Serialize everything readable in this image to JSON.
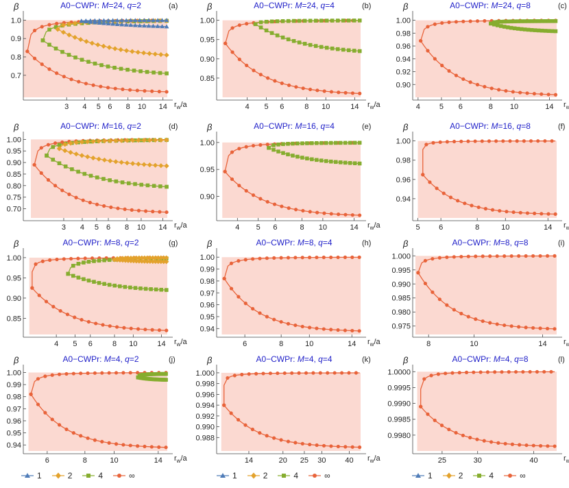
{
  "colors": {
    "1": "#4f7cb8",
    "2": "#e3a22c",
    "4": "#86ad2f",
    "inf": "#e8633a",
    "title": "#1e1ec8",
    "shade": "#fbd9d1"
  },
  "legend": {
    "entries": [
      {
        "key": "1",
        "label": "1",
        "marker": "triangle"
      },
      {
        "key": "2",
        "label": "2",
        "marker": "diamond"
      },
      {
        "key": "4",
        "label": "4",
        "marker": "square"
      },
      {
        "key": "inf",
        "label": "∞",
        "marker": "circle"
      }
    ]
  },
  "chart_data": [
    {
      "type": "line",
      "panel": "(a)",
      "title_prefix": "A0−CWPr: ",
      "M": "24",
      "q": "2",
      "title": "A0−CWPr: M=24, q=2",
      "ylabel": "β",
      "xlabel": "r_w/a",
      "xlim": [
        1.5,
        15
      ],
      "ylim": [
        0.58,
        1.02
      ],
      "xticks": [
        "3",
        "4",
        "5",
        "6",
        "8",
        "10",
        "14"
      ],
      "xtick_values": [
        3,
        4,
        5,
        6,
        8,
        10,
        14
      ],
      "yticks": [
        "0.7",
        "0.8",
        "0.9",
        "1.0"
      ],
      "ytick_values": [
        0.7,
        0.8,
        0.9,
        1.0
      ],
      "shade_from": 1.5,
      "log_x": true,
      "series": [
        {
          "name": "inf",
          "x0": 1.6,
          "upper": [
            0.83,
            1.0
          ],
          "lower": [
            0.83,
            0.61
          ],
          "k": 1.6
        },
        {
          "name": "4",
          "x0": 2.05,
          "upper": [
            0.89,
            1.0
          ],
          "lower": [
            0.89,
            0.71
          ],
          "k": 1.1
        },
        {
          "name": "2",
          "x0": 2.6,
          "upper": [
            0.95,
            1.0
          ],
          "lower": [
            0.95,
            0.81
          ],
          "k": 0.9
        },
        {
          "name": "1",
          "x0": 3.8,
          "upper": [
            0.995,
            1.0
          ],
          "lower": [
            0.995,
            0.965
          ],
          "k": 0.6
        }
      ]
    },
    {
      "type": "line",
      "panel": "(b)",
      "title_prefix": "A0−CWPr: ",
      "M": "24",
      "q": "4",
      "title": "A0−CWPr: M=24, q=4",
      "ylabel": "β",
      "xlabel": "r_w/a",
      "xlim": [
        2.8,
        15
      ],
      "ylim": [
        0.8,
        1.01
      ],
      "xticks": [
        "4",
        "5",
        "6",
        "8",
        "10",
        "14"
      ],
      "xtick_values": [
        4,
        5,
        6,
        8,
        10,
        14
      ],
      "yticks": [
        "0.85",
        "0.90",
        "0.95",
        "1.00"
      ],
      "ytick_values": [
        0.85,
        0.9,
        0.95,
        1.0
      ],
      "shade_from": 3.0,
      "log_x": true,
      "series": [
        {
          "name": "inf",
          "x0": 3.1,
          "upper": [
            0.94,
            1.0
          ],
          "lower": [
            0.94,
            0.81
          ],
          "k": 1.6
        },
        {
          "name": "4",
          "x0": 4.4,
          "upper": [
            0.99,
            1.0
          ],
          "lower": [
            0.99,
            0.92
          ],
          "k": 1.0
        }
      ]
    },
    {
      "type": "line",
      "panel": "(c)",
      "title_prefix": "A0−CWPr: ",
      "M": "24",
      "q": "8",
      "title": "A0−CWPr: M=24, q=8",
      "ylabel": "β",
      "xlabel": "r_w/a",
      "xlim": [
        3.8,
        15
      ],
      "ylim": [
        0.88,
        1.006
      ],
      "xticks": [
        "4",
        "5",
        "6",
        "8",
        "10",
        "14"
      ],
      "xtick_values": [
        4,
        5,
        6,
        8,
        10,
        14
      ],
      "yticks": [
        "0.90",
        "0.92",
        "0.94",
        "0.96",
        "0.98",
        "1.00"
      ],
      "ytick_values": [
        0.9,
        0.92,
        0.94,
        0.96,
        0.98,
        1.0
      ],
      "shade_from": 3.9,
      "log_x": true,
      "series": [
        {
          "name": "inf",
          "x0": 4.1,
          "upper": [
            0.968,
            1.0
          ],
          "lower": [
            0.968,
            0.884
          ],
          "k": 1.7
        },
        {
          "name": "4",
          "x0": 8.0,
          "upper": [
            0.995,
            0.999
          ],
          "lower": [
            0.995,
            0.983
          ],
          "k": 1.0
        }
      ]
    },
    {
      "type": "line",
      "panel": "(d)",
      "title_prefix": "A0−CWPr: ",
      "M": "16",
      "q": "2",
      "title": "A0−CWPr: M=16, q=2",
      "ylabel": "β",
      "xlabel": "r_w/a",
      "xlim": [
        1.6,
        15
      ],
      "ylim": [
        0.66,
        1.01
      ],
      "xticks": [
        "3",
        "4",
        "5",
        "6",
        "8",
        "10",
        "14"
      ],
      "xtick_values": [
        3,
        4,
        5,
        6,
        8,
        10,
        14
      ],
      "yticks": [
        "0.70",
        "0.75",
        "0.80",
        "0.85",
        "0.90",
        "0.95",
        "1.00"
      ],
      "ytick_values": [
        0.7,
        0.75,
        0.8,
        0.85,
        0.9,
        0.95,
        1.0
      ],
      "shade_from": 1.8,
      "log_x": true,
      "series": [
        {
          "name": "inf",
          "x0": 1.9,
          "upper": [
            0.89,
            1.0
          ],
          "lower": [
            0.89,
            0.685
          ],
          "k": 1.6
        },
        {
          "name": "4",
          "x0": 2.3,
          "upper": [
            0.93,
            1.0
          ],
          "lower": [
            0.93,
            0.795
          ],
          "k": 1.1
        },
        {
          "name": "2",
          "x0": 2.8,
          "upper": [
            0.96,
            1.0
          ],
          "lower": [
            0.96,
            0.885
          ],
          "k": 0.9
        }
      ]
    },
    {
      "type": "line",
      "panel": "(e)",
      "title_prefix": "A0−CWPr: ",
      "M": "16",
      "q": "4",
      "title": "A0−CWPr: M=16, q=4",
      "ylabel": "β",
      "xlabel": "r_w/a",
      "xlim": [
        3.2,
        15
      ],
      "ylim": [
        0.86,
        1.01
      ],
      "xticks": [
        "4",
        "5",
        "6",
        "8",
        "10",
        "14"
      ],
      "xtick_values": [
        4,
        5,
        6,
        8,
        10,
        14
      ],
      "yticks": [
        "0.90",
        "0.95",
        "1.00"
      ],
      "ytick_values": [
        0.9,
        0.95,
        1.0
      ],
      "shade_from": 3.4,
      "log_x": true,
      "series": [
        {
          "name": "inf",
          "x0": 3.5,
          "upper": [
            0.946,
            1.0
          ],
          "lower": [
            0.946,
            0.865
          ],
          "k": 1.6
        },
        {
          "name": "4",
          "x0": 5.6,
          "upper": [
            0.99,
            1.0
          ],
          "lower": [
            0.99,
            0.961
          ],
          "k": 1.0
        }
      ]
    },
    {
      "type": "line",
      "panel": "(f)",
      "title_prefix": "A0−CWPr: ",
      "M": "16",
      "q": "8",
      "title": "A0−CWPr: M=16, q=8",
      "ylabel": "β",
      "xlabel": "r_w/a",
      "xlim": [
        4.8,
        15
      ],
      "ylim": [
        0.92,
        1.004
      ],
      "xticks": [
        "5",
        "6",
        "8",
        "10",
        "14"
      ],
      "xtick_values": [
        5,
        6,
        8,
        10,
        14
      ],
      "yticks": [
        "0.94",
        "0.96",
        "0.98",
        "1.00"
      ],
      "ytick_values": [
        0.94,
        0.96,
        0.98,
        1.0
      ],
      "shade_from": 5.0,
      "log_x": true,
      "series": [
        {
          "name": "inf",
          "x0": 5.2,
          "upper": [
            0.965,
            1.0
          ],
          "lower": [
            0.965,
            0.924
          ],
          "k": 1.8,
          "vjump": 0.991
        }
      ]
    },
    {
      "type": "line",
      "panel": "(g)",
      "title_prefix": "A0−CWPr: ",
      "M": "8",
      "q": "2",
      "title": "A0−CWPr: M=8, q=2",
      "ylabel": "β",
      "xlabel": "r_w/a",
      "xlim": [
        2.7,
        15
      ],
      "ylim": [
        0.81,
        1.01
      ],
      "xticks": [
        "4",
        "5",
        "6",
        "8",
        "10",
        "14"
      ],
      "xtick_values": [
        4,
        5,
        6,
        8,
        10,
        14
      ],
      "yticks": [
        "0.85",
        "0.90",
        "0.95",
        "1.00"
      ],
      "ytick_values": [
        0.85,
        0.9,
        0.95,
        1.0
      ],
      "shade_from": 2.9,
      "log_x": true,
      "series": [
        {
          "name": "inf",
          "x0": 3.0,
          "upper": [
            0.925,
            1.0
          ],
          "lower": [
            0.925,
            0.82
          ],
          "k": 1.6,
          "vjump": 0.965
        },
        {
          "name": "4",
          "x0": 4.6,
          "upper": [
            0.96,
            1.0
          ],
          "lower": [
            0.96,
            0.92
          ],
          "k": 1.0
        },
        {
          "name": "2",
          "x0": 8.0,
          "upper": [
            0.995,
            1.0
          ],
          "lower": [
            0.995,
            0.99
          ],
          "k": 1.0
        }
      ]
    },
    {
      "type": "line",
      "panel": "(h)",
      "title_prefix": "A0−CWPr: ",
      "M": "8",
      "q": "4",
      "title": "A0−CWPr: M=8, q=4",
      "ylabel": "β",
      "xlabel": "r_w/a",
      "xlim": [
        4.8,
        15
      ],
      "ylim": [
        0.935,
        1.003
      ],
      "xticks": [
        "6",
        "8",
        "10",
        "14"
      ],
      "xtick_values": [
        6,
        8,
        10,
        14
      ],
      "yticks": [
        "0.94",
        "0.95",
        "0.96",
        "0.97",
        "0.98",
        "0.99",
        "1.00"
      ],
      "ytick_values": [
        0.94,
        0.95,
        0.96,
        0.97,
        0.98,
        0.99,
        1.0
      ],
      "shade_from": 5.0,
      "log_x": true,
      "series": [
        {
          "name": "inf",
          "x0": 5.1,
          "upper": [
            0.982,
            1.0
          ],
          "lower": [
            0.982,
            0.938
          ],
          "k": 1.8
        }
      ]
    },
    {
      "type": "line",
      "panel": "(i)",
      "title_prefix": "A0−CWPr: ",
      "M": "8",
      "q": "8",
      "title": "A0−CWPr: M=8, q=8",
      "ylabel": "β",
      "xlabel": "r_w/a",
      "xlim": [
        7.4,
        15
      ],
      "ylim": [
        0.972,
        1.0008
      ],
      "xticks": [
        "8",
        "10",
        "14"
      ],
      "xtick_values": [
        8,
        10,
        14
      ],
      "yticks": [
        "0.975",
        "0.980",
        "0.985",
        "0.990",
        "0.995",
        "1.000"
      ],
      "ytick_values": [
        0.975,
        0.98,
        0.985,
        0.99,
        0.995,
        1.0
      ],
      "shade_from": 7.5,
      "log_x": true,
      "series": [
        {
          "name": "inf",
          "x0": 7.6,
          "upper": [
            0.994,
            1.0
          ],
          "lower": [
            0.994,
            0.974
          ],
          "k": 1.8
        }
      ]
    },
    {
      "type": "line",
      "panel": "(j)",
      "title_prefix": "A0−CWPr: ",
      "M": "4",
      "q": "2",
      "title": "A0−CWPr: M=4, q=2",
      "ylabel": "β",
      "xlabel": "r_w/a",
      "xlim": [
        5.0,
        15
      ],
      "ylim": [
        0.935,
        1.002
      ],
      "xticks": [
        "6",
        "8",
        "10",
        "14"
      ],
      "xtick_values": [
        6,
        8,
        10,
        14
      ],
      "yticks": [
        "0.94",
        "0.95",
        "0.96",
        "0.97",
        "0.98",
        "0.99",
        "1.00"
      ],
      "ytick_values": [
        0.94,
        0.95,
        0.96,
        0.97,
        0.98,
        0.99,
        1.0
      ],
      "shade_from": 5.2,
      "log_x": true,
      "series": [
        {
          "name": "inf",
          "x0": 5.3,
          "upper": [
            0.982,
            1.0
          ],
          "lower": [
            0.982,
            0.938
          ],
          "k": 1.8
        },
        {
          "name": "4",
          "x0": 12.0,
          "upper": [
            0.996,
            0.999
          ],
          "lower": [
            0.996,
            0.994
          ],
          "k": 1.0
        }
      ]
    },
    {
      "type": "line",
      "panel": "(k)",
      "title_prefix": "A0−CWPr: ",
      "M": "4",
      "q": "4",
      "title": "A0−CWPr: M=4, q=4",
      "ylabel": "β",
      "xlabel": "r_w/a",
      "xlim": [
        10,
        45
      ],
      "ylim": [
        0.9855,
        1.0005
      ],
      "xticks": [
        "14",
        "20",
        "25",
        "30",
        "40"
      ],
      "xtick_values": [
        14,
        20,
        25,
        30,
        40
      ],
      "yticks": [
        "0.988",
        "0.990",
        "0.992",
        "0.994",
        "0.996",
        "0.998",
        "1.000"
      ],
      "ytick_values": [
        0.988,
        0.99,
        0.992,
        0.994,
        0.996,
        0.998,
        1.0
      ],
      "shade_from": 10.5,
      "log_x": true,
      "series": [
        {
          "name": "inf",
          "x0": 10.8,
          "upper": [
            0.994,
            1.0
          ],
          "lower": [
            0.994,
            0.9862
          ],
          "k": 1.8,
          "vjump": 0.9977
        }
      ]
    },
    {
      "type": "line",
      "panel": "(l)",
      "title_prefix": "A0−CWPr: ",
      "M": "4",
      "q": "8",
      "title": "A0−CWPr: M=4, q=8",
      "ylabel": "β",
      "xlabel": "r_w/a",
      "xlim": [
        21.5,
        45
      ],
      "ylim": [
        0.9975,
        1.00005
      ],
      "xticks": [
        "25",
        "30",
        "40"
      ],
      "xtick_values": [
        25,
        30,
        40
      ],
      "yticks": [
        "0.9980",
        "0.9985",
        "0.9990",
        "0.9995",
        "1.0000"
      ],
      "ytick_values": [
        0.998,
        0.9985,
        0.999,
        0.9995,
        1.0
      ],
      "shade_from": 22.0,
      "log_x": true,
      "series": [
        {
          "name": "inf",
          "x0": 22.4,
          "upper": [
            0.9989,
            1.0
          ],
          "lower": [
            0.9989,
            0.99765
          ],
          "k": 1.8,
          "vjump": 0.99945
        }
      ]
    }
  ]
}
